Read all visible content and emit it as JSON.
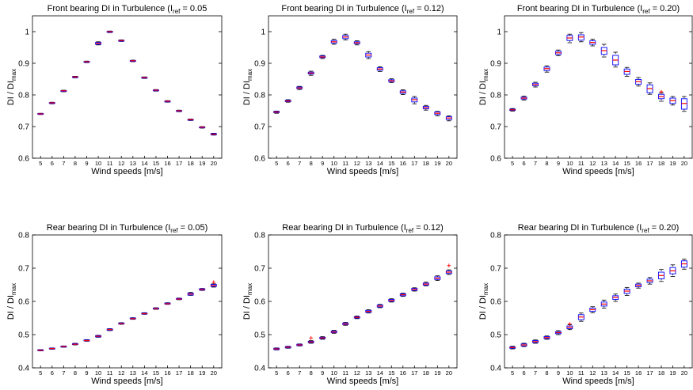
{
  "chart_data": [
    {
      "type": "box",
      "title_prefix": "Front bearing DI in Turbulence (I",
      "title_sub": "ref",
      "title_suffix": " = 0.05",
      "xlabel": "Wind speeds [m/s]",
      "ylabel_main": "DI / DI",
      "ylabel_sub": "max",
      "categories": [
        "5",
        "6",
        "7",
        "8",
        "9",
        "10",
        "11",
        "12",
        "13",
        "14",
        "15",
        "16",
        "17",
        "18",
        "19",
        "20"
      ],
      "ylim": [
        0.6,
        1.05
      ],
      "yticks": [
        0.6,
        0.7,
        0.8,
        0.9,
        1
      ],
      "ytick_labels": [
        "0.6",
        "0.7",
        "0.8",
        "0.9",
        "1"
      ],
      "grid": false,
      "median": [
        0.74,
        0.775,
        0.813,
        0.857,
        0.905,
        0.963,
        1.0,
        0.972,
        0.908,
        0.855,
        0.815,
        0.78,
        0.75,
        0.722,
        0.698,
        0.676
      ],
      "q1": [
        0.739,
        0.773,
        0.811,
        0.855,
        0.903,
        0.96,
        0.998,
        0.97,
        0.906,
        0.853,
        0.813,
        0.778,
        0.748,
        0.72,
        0.696,
        0.674
      ],
      "q3": [
        0.741,
        0.776,
        0.814,
        0.858,
        0.906,
        0.966,
        1.001,
        0.973,
        0.909,
        0.856,
        0.816,
        0.781,
        0.751,
        0.723,
        0.699,
        0.678
      ],
      "wlow": [
        0.738,
        0.772,
        0.81,
        0.854,
        0.902,
        0.958,
        0.997,
        0.969,
        0.905,
        0.852,
        0.812,
        0.777,
        0.747,
        0.719,
        0.695,
        0.673
      ],
      "whigh": [
        0.742,
        0.777,
        0.815,
        0.859,
        0.907,
        0.968,
        1.002,
        0.974,
        0.91,
        0.857,
        0.817,
        0.782,
        0.752,
        0.724,
        0.7,
        0.679
      ],
      "outliers": []
    },
    {
      "type": "box",
      "title_prefix": "Front bearing DI in Turbulence (I",
      "title_sub": "ref",
      "title_suffix": " = 0.12)",
      "xlabel": "Wind speeds [m/s]",
      "ylabel_main": "DI / DI",
      "ylabel_sub": "max",
      "categories": [
        "5",
        "6",
        "7",
        "8",
        "9",
        "10",
        "11",
        "12",
        "13",
        "14",
        "15",
        "16",
        "17",
        "18",
        "19",
        "20"
      ],
      "ylim": [
        0.6,
        1.05
      ],
      "yticks": [
        0.6,
        0.7,
        0.8,
        0.9,
        1
      ],
      "ytick_labels": [
        "0.6",
        "0.7",
        "0.8",
        "0.9",
        "1"
      ],
      "grid": false,
      "median": [
        0.746,
        0.781,
        0.822,
        0.869,
        0.92,
        0.968,
        0.983,
        0.965,
        0.926,
        0.882,
        0.845,
        0.809,
        0.785,
        0.76,
        0.742,
        0.727
      ],
      "q1": [
        0.744,
        0.779,
        0.82,
        0.866,
        0.918,
        0.964,
        0.978,
        0.962,
        0.92,
        0.878,
        0.842,
        0.805,
        0.778,
        0.756,
        0.738,
        0.722
      ],
      "q3": [
        0.748,
        0.783,
        0.825,
        0.872,
        0.923,
        0.972,
        0.988,
        0.968,
        0.932,
        0.886,
        0.848,
        0.813,
        0.79,
        0.764,
        0.746,
        0.731
      ],
      "wlow": [
        0.742,
        0.777,
        0.817,
        0.862,
        0.915,
        0.96,
        0.974,
        0.958,
        0.915,
        0.874,
        0.839,
        0.801,
        0.772,
        0.752,
        0.734,
        0.718
      ],
      "whigh": [
        0.749,
        0.785,
        0.827,
        0.875,
        0.925,
        0.976,
        0.992,
        0.971,
        0.937,
        0.889,
        0.851,
        0.816,
        0.795,
        0.767,
        0.748,
        0.734
      ],
      "outliers": []
    },
    {
      "type": "box",
      "title_prefix": "Front bearing DI in Turbulence (I",
      "title_sub": "ref",
      "title_suffix": " = 0.20)",
      "xlabel": "Wind speeds [m/s]",
      "ylabel_main": "DI / DI",
      "ylabel_sub": "max",
      "categories": [
        "5",
        "6",
        "7",
        "8",
        "9",
        "10",
        "11",
        "12",
        "13",
        "14",
        "15",
        "16",
        "17",
        "18",
        "19",
        "20"
      ],
      "ylim": [
        0.6,
        1.05
      ],
      "yticks": [
        0.6,
        0.7,
        0.8,
        0.9,
        1
      ],
      "ytick_labels": [
        "0.6",
        "0.7",
        "0.8",
        "0.9",
        "1"
      ],
      "grid": false,
      "median": [
        0.753,
        0.79,
        0.833,
        0.883,
        0.933,
        0.98,
        0.983,
        0.966,
        0.94,
        0.91,
        0.874,
        0.842,
        0.82,
        0.795,
        0.782,
        0.773
      ],
      "q1": [
        0.751,
        0.787,
        0.829,
        0.877,
        0.928,
        0.972,
        0.973,
        0.96,
        0.928,
        0.895,
        0.865,
        0.834,
        0.807,
        0.788,
        0.773,
        0.755
      ],
      "q3": [
        0.755,
        0.793,
        0.837,
        0.888,
        0.938,
        0.988,
        0.99,
        0.971,
        0.95,
        0.925,
        0.882,
        0.849,
        0.832,
        0.802,
        0.79,
        0.788
      ],
      "wlow": [
        0.749,
        0.784,
        0.825,
        0.872,
        0.924,
        0.965,
        0.968,
        0.955,
        0.92,
        0.888,
        0.859,
        0.828,
        0.802,
        0.78,
        0.768,
        0.748
      ],
      "whigh": [
        0.757,
        0.796,
        0.84,
        0.892,
        0.942,
        0.992,
        0.997,
        0.976,
        0.96,
        0.935,
        0.887,
        0.855,
        0.838,
        0.806,
        0.795,
        0.795
      ],
      "outliers": [
        {
          "x": "18",
          "y": 0.81
        }
      ]
    },
    {
      "type": "box",
      "title_prefix": "Rear bearing DI in Turbulence (I",
      "title_sub": "ref",
      "title_suffix": " = 0.05)",
      "xlabel": "Wind speeds [m/s]",
      "ylabel_main": "DI / DI",
      "ylabel_sub": "max",
      "categories": [
        "5",
        "6",
        "7",
        "8",
        "9",
        "10",
        "11",
        "12",
        "13",
        "14",
        "15",
        "16",
        "17",
        "18",
        "19",
        "20"
      ],
      "ylim": [
        0.4,
        0.8
      ],
      "yticks": [
        0.4,
        0.5,
        0.6,
        0.7,
        0.8
      ],
      "ytick_labels": [
        "0.4",
        "0.5",
        "0.6",
        "0.7",
        "0.8"
      ],
      "grid": false,
      "median": [
        0.453,
        0.458,
        0.464,
        0.471,
        0.482,
        0.495,
        0.515,
        0.533,
        0.548,
        0.563,
        0.578,
        0.593,
        0.607,
        0.622,
        0.636,
        0.648
      ],
      "q1": [
        0.452,
        0.457,
        0.463,
        0.47,
        0.481,
        0.493,
        0.513,
        0.532,
        0.547,
        0.562,
        0.577,
        0.592,
        0.606,
        0.619,
        0.634,
        0.645
      ],
      "q3": [
        0.454,
        0.459,
        0.465,
        0.473,
        0.484,
        0.497,
        0.517,
        0.535,
        0.55,
        0.565,
        0.58,
        0.595,
        0.609,
        0.625,
        0.638,
        0.651
      ],
      "wlow": [
        0.451,
        0.456,
        0.462,
        0.469,
        0.48,
        0.492,
        0.512,
        0.531,
        0.546,
        0.561,
        0.576,
        0.591,
        0.605,
        0.618,
        0.633,
        0.643
      ],
      "whigh": [
        0.455,
        0.46,
        0.466,
        0.474,
        0.485,
        0.498,
        0.518,
        0.536,
        0.551,
        0.566,
        0.581,
        0.596,
        0.61,
        0.627,
        0.639,
        0.653
      ],
      "outliers": [
        {
          "x": "20",
          "y": 0.658
        }
      ]
    },
    {
      "type": "box",
      "title_prefix": "Rear bearing DI in Turbulence (I",
      "title_sub": "ref",
      "title_suffix": " = 0.12)",
      "xlabel": "Wind speeds [m/s]",
      "ylabel_main": "DI / DI",
      "ylabel_sub": "max",
      "categories": [
        "5",
        "6",
        "7",
        "8",
        "9",
        "10",
        "11",
        "12",
        "13",
        "14",
        "15",
        "16",
        "17",
        "18",
        "19",
        "20"
      ],
      "ylim": [
        0.4,
        0.8
      ],
      "yticks": [
        0.4,
        0.5,
        0.6,
        0.7,
        0.8
      ],
      "ytick_labels": [
        "0.4",
        "0.5",
        "0.6",
        "0.7",
        "0.8"
      ],
      "grid": false,
      "median": [
        0.457,
        0.462,
        0.469,
        0.478,
        0.49,
        0.508,
        0.532,
        0.552,
        0.57,
        0.586,
        0.603,
        0.62,
        0.636,
        0.652,
        0.67,
        0.688
      ],
      "q1": [
        0.455,
        0.46,
        0.467,
        0.476,
        0.488,
        0.506,
        0.53,
        0.55,
        0.567,
        0.583,
        0.6,
        0.617,
        0.633,
        0.649,
        0.666,
        0.684
      ],
      "q3": [
        0.459,
        0.464,
        0.471,
        0.48,
        0.492,
        0.511,
        0.535,
        0.554,
        0.573,
        0.589,
        0.606,
        0.623,
        0.639,
        0.655,
        0.674,
        0.692
      ],
      "wlow": [
        0.454,
        0.459,
        0.466,
        0.474,
        0.486,
        0.504,
        0.528,
        0.548,
        0.565,
        0.581,
        0.598,
        0.615,
        0.631,
        0.647,
        0.663,
        0.681
      ],
      "whigh": [
        0.46,
        0.465,
        0.472,
        0.482,
        0.494,
        0.513,
        0.537,
        0.556,
        0.575,
        0.591,
        0.608,
        0.625,
        0.641,
        0.658,
        0.677,
        0.695
      ],
      "outliers": [
        {
          "x": "8",
          "y": 0.49
        },
        {
          "x": "20",
          "y": 0.708
        }
      ]
    },
    {
      "type": "box",
      "title_prefix": "Rear bearing DI in Turbulence (I",
      "title_sub": "ref",
      "title_suffix": " = 0.20)",
      "xlabel": "Wind speeds [m/s]",
      "ylabel_main": "DI / DI",
      "ylabel_sub": "max",
      "categories": [
        "5",
        "6",
        "7",
        "8",
        "9",
        "10",
        "11",
        "12",
        "13",
        "14",
        "15",
        "16",
        "17",
        "18",
        "19",
        "20"
      ],
      "ylim": [
        0.4,
        0.8
      ],
      "yticks": [
        0.4,
        0.5,
        0.6,
        0.7,
        0.8
      ],
      "ytick_labels": [
        "0.4",
        "0.5",
        "0.6",
        "0.7",
        "0.8"
      ],
      "grid": false,
      "median": [
        0.461,
        0.469,
        0.479,
        0.491,
        0.506,
        0.522,
        0.553,
        0.575,
        0.592,
        0.612,
        0.631,
        0.648,
        0.662,
        0.678,
        0.692,
        0.713
      ],
      "q1": [
        0.459,
        0.466,
        0.476,
        0.488,
        0.503,
        0.518,
        0.545,
        0.57,
        0.586,
        0.606,
        0.624,
        0.644,
        0.657,
        0.668,
        0.683,
        0.703
      ],
      "q3": [
        0.463,
        0.472,
        0.482,
        0.494,
        0.509,
        0.526,
        0.56,
        0.58,
        0.598,
        0.617,
        0.637,
        0.652,
        0.667,
        0.688,
        0.702,
        0.722
      ],
      "wlow": [
        0.457,
        0.464,
        0.474,
        0.486,
        0.5,
        0.515,
        0.54,
        0.566,
        0.58,
        0.6,
        0.618,
        0.64,
        0.652,
        0.66,
        0.675,
        0.697
      ],
      "whigh": [
        0.465,
        0.474,
        0.484,
        0.496,
        0.512,
        0.53,
        0.565,
        0.584,
        0.604,
        0.622,
        0.642,
        0.655,
        0.672,
        0.696,
        0.71,
        0.727
      ],
      "outliers": [
        {
          "x": "10",
          "y": 0.532
        }
      ]
    }
  ],
  "colors": {
    "box": "#0000ff",
    "median": "#ff0000",
    "whisker": "#000000",
    "outlier": "#ff0000",
    "axes": "#000000"
  }
}
